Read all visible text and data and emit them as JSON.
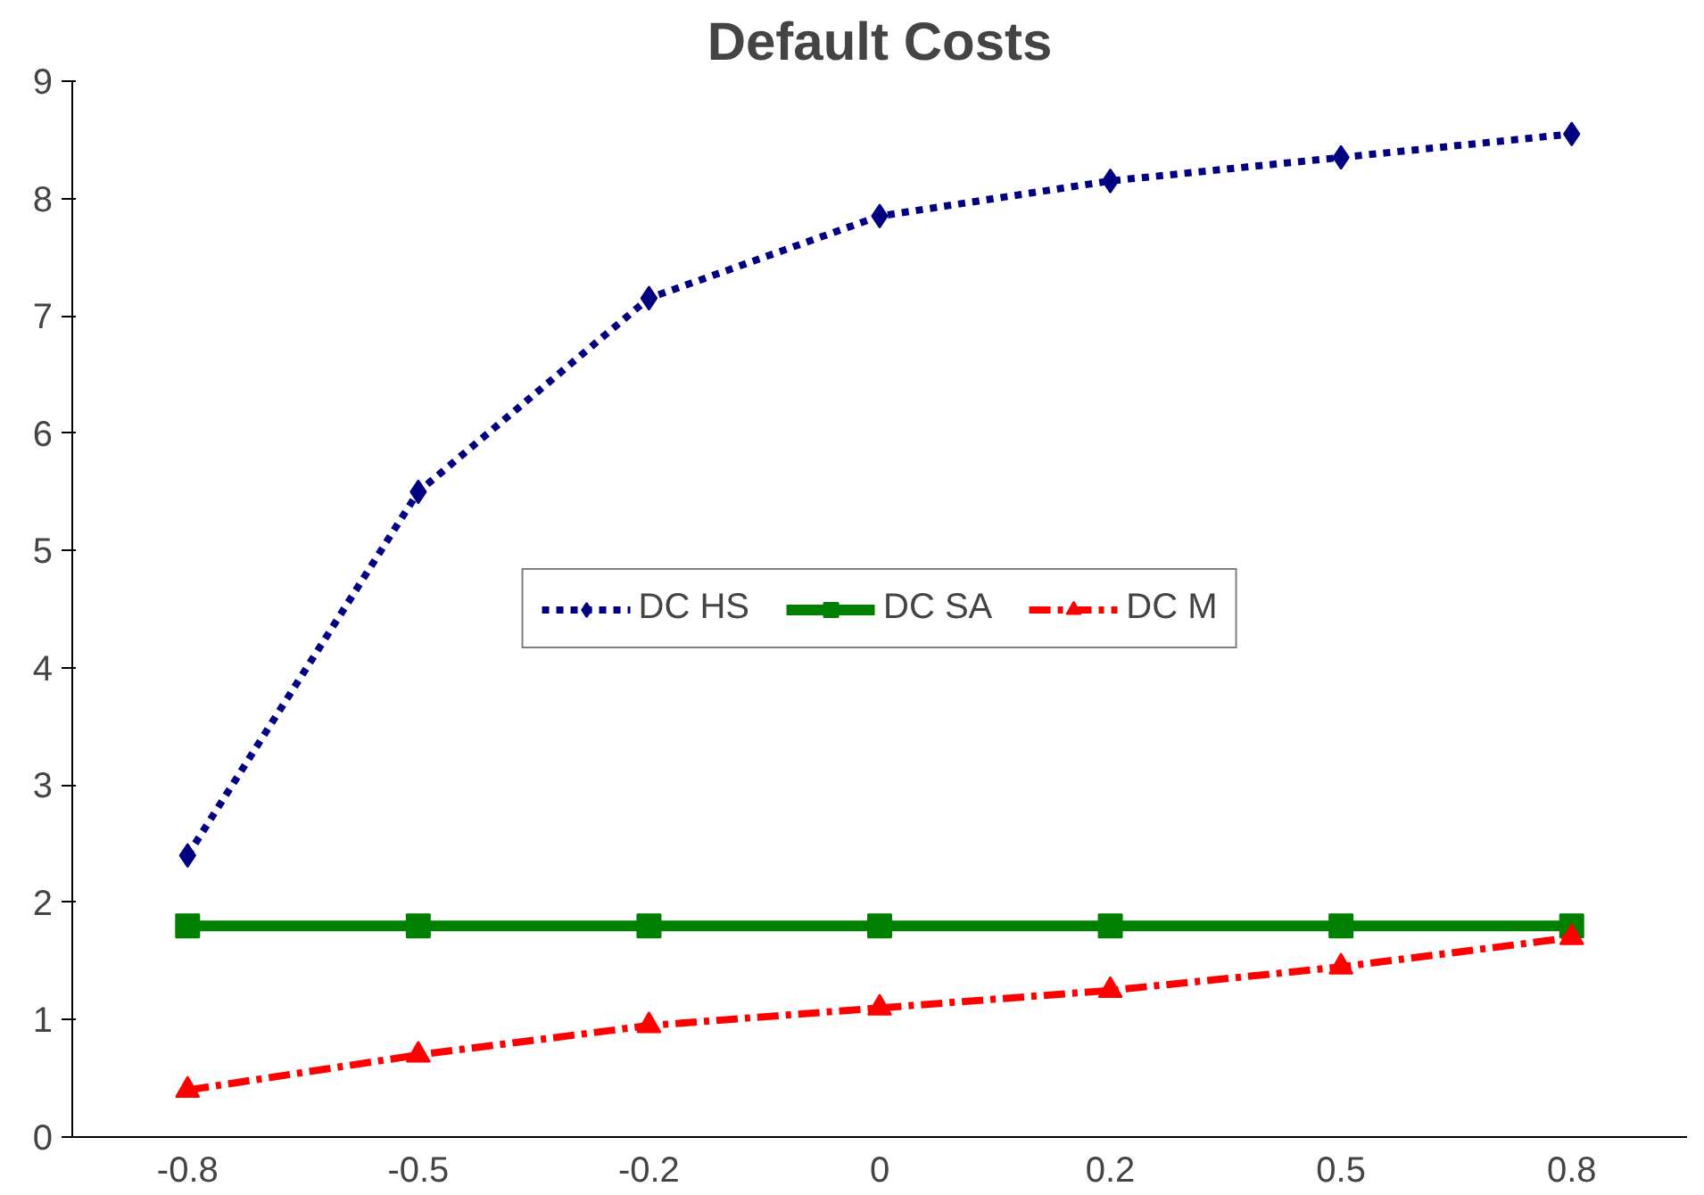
{
  "chart_data": {
    "type": "line",
    "title": "Default Costs",
    "categories": [
      "-0.8",
      "-0.5",
      "-0.2",
      "0",
      "0.2",
      "0.5",
      "0.8"
    ],
    "series": [
      {
        "name": "DC HS",
        "color": "#000080",
        "marker": "diamond",
        "line_style": "dotted",
        "values": [
          2.4,
          5.5,
          7.15,
          7.85,
          8.15,
          8.35,
          8.55
        ]
      },
      {
        "name": "DC SA",
        "color": "#008000",
        "marker": "square",
        "line_style": "solid",
        "values": [
          1.8,
          1.8,
          1.8,
          1.8,
          1.8,
          1.8,
          1.8
        ]
      },
      {
        "name": "DC M",
        "color": "#ff0000",
        "marker": "triangle",
        "line_style": "dashed",
        "values": [
          0.4,
          0.7,
          0.95,
          1.1,
          1.25,
          1.45,
          1.7
        ]
      }
    ],
    "ylim": [
      0,
      9
    ],
    "yticks": [
      0,
      1,
      2,
      3,
      4,
      5,
      6,
      7,
      8,
      9
    ],
    "grid": false,
    "legend": "center"
  }
}
